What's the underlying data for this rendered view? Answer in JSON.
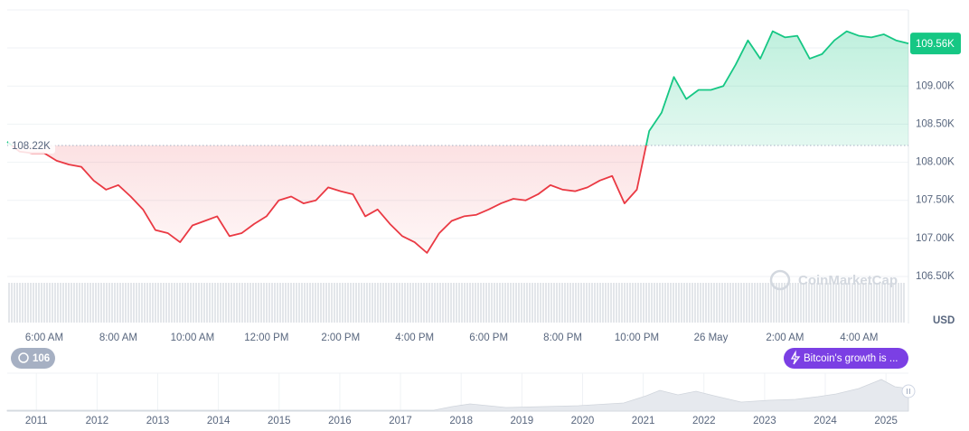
{
  "chart_data": {
    "type": "line",
    "categories": [
      null,
      null,
      null,
      "6:00 AM",
      null,
      null,
      null,
      null,
      null,
      "8:00 AM",
      null,
      null,
      null,
      null,
      null,
      "10:00 AM",
      null,
      null,
      null,
      null,
      null,
      "12:00 PM",
      null,
      null,
      null,
      null,
      null,
      "2:00 PM",
      null,
      null,
      null,
      null,
      null,
      "4:00 PM",
      null,
      null,
      null,
      null,
      null,
      "6:00 PM",
      null,
      null,
      null,
      null,
      null,
      "8:00 PM",
      null,
      null,
      null,
      null,
      null,
      "10:00 PM",
      null,
      null,
      null,
      null,
      null,
      "26 May",
      null,
      null,
      null,
      null,
      null,
      "2:00 AM",
      null,
      null,
      null,
      null,
      null,
      "4:00 AM",
      null,
      null,
      null,
      null
    ],
    "values": [
      108270,
      108140,
      108120,
      108120,
      108020,
      107970,
      107940,
      107760,
      107640,
      107700,
      107550,
      107380,
      107110,
      107070,
      106950,
      107170,
      107230,
      107290,
      107030,
      107070,
      107190,
      107290,
      107500,
      107550,
      107460,
      107500,
      107670,
      107620,
      107580,
      107290,
      107380,
      107190,
      107030,
      106950,
      106810,
      107070,
      107230,
      107290,
      107310,
      107380,
      107460,
      107520,
      107500,
      107580,
      107700,
      107640,
      107620,
      107670,
      107760,
      107820,
      107460,
      107640,
      108410,
      108650,
      109120,
      108830,
      108950,
      108950,
      109000,
      109280,
      109600,
      109360,
      109720,
      109640,
      109660,
      109360,
      109420,
      109600,
      109720,
      109660,
      109640,
      109680,
      109600,
      109560
    ],
    "up_color": "#16c784",
    "down_color": "#ea3943",
    "baseline": {
      "value": 108220,
      "label": "108.22K"
    },
    "last_price": {
      "value": 109560,
      "label": "109.56K"
    },
    "ylim": [
      106500,
      110000
    ],
    "yticks": [
      {
        "value": 106500,
        "label": "106.50K"
      },
      {
        "value": 107000,
        "label": "107.00K"
      },
      {
        "value": 107500,
        "label": "107.50K"
      },
      {
        "value": 108000,
        "label": "108.00K"
      },
      {
        "value": 108500,
        "label": "108.50K"
      },
      {
        "value": 109000,
        "label": "109.00K"
      }
    ],
    "y_axis_label": "USD",
    "grid": true,
    "watermark": "CoinMarketCap"
  },
  "navigator": {
    "xlim": [
      2010.52,
      2025.37
    ],
    "xticks": [
      2011,
      2012,
      2013,
      2014,
      2015,
      2016,
      2017,
      2018,
      2019,
      2020,
      2021,
      2022,
      2023,
      2024,
      2025
    ]
  },
  "badges": {
    "history": "106",
    "news": "Bitcoin's growth is ..."
  }
}
